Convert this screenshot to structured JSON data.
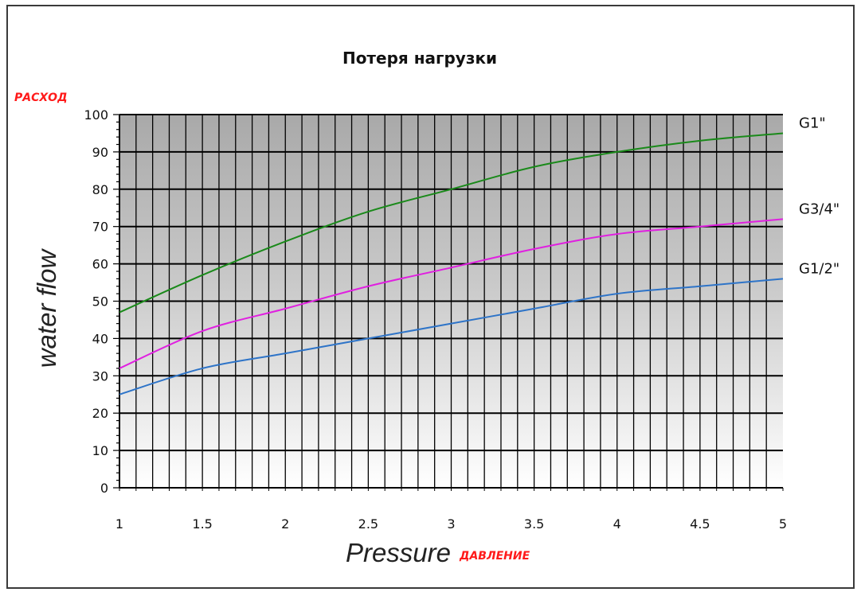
{
  "chart_data": {
    "type": "line",
    "title": "Потеря нагрузки",
    "xlabel": "Pressure",
    "xlabel_ru": "ДАВЛЕНИЕ",
    "ylabel": "water flow",
    "ylabel_ru": "РАСХОД",
    "xlim": [
      1,
      5
    ],
    "ylim": [
      0,
      100
    ],
    "x_ticks": [
      "1",
      "1.5",
      "2",
      "2.5",
      "3",
      "3.5",
      "4",
      "4.5",
      "5"
    ],
    "y_ticks": [
      "0",
      "10",
      "20",
      "30",
      "40",
      "50",
      "60",
      "70",
      "80",
      "90",
      "100"
    ],
    "grid": true,
    "legend": "labels at right end of lines",
    "series": [
      {
        "name": "G1\"",
        "color": "#1a8a1a",
        "x": [
          1,
          1.5,
          2,
          2.5,
          3,
          3.5,
          4,
          4.5,
          5
        ],
        "y": [
          47,
          57,
          66,
          74,
          80,
          86,
          90,
          93,
          95
        ]
      },
      {
        "name": "G3/4\"",
        "color": "#e020e0",
        "x": [
          1,
          1.5,
          2,
          2.5,
          3,
          3.5,
          4,
          4.5,
          5
        ],
        "y": [
          32,
          42,
          48,
          54,
          59,
          64,
          68,
          70,
          72
        ]
      },
      {
        "name": "G1/2\"",
        "color": "#2e74c8",
        "x": [
          1,
          1.5,
          2,
          2.5,
          3,
          3.5,
          4,
          4.5,
          5
        ],
        "y": [
          25,
          32,
          36,
          40,
          44,
          48,
          52,
          54,
          56
        ]
      }
    ]
  }
}
